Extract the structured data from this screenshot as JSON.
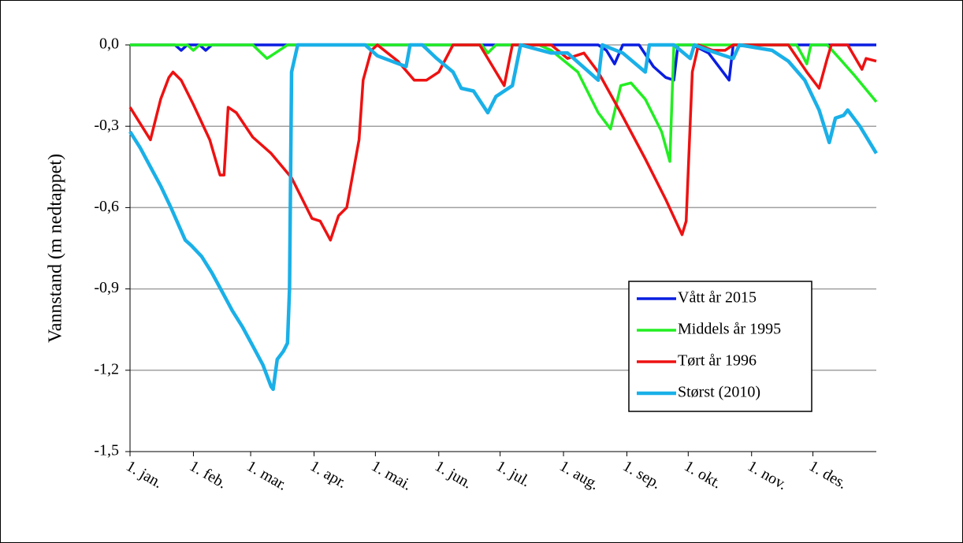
{
  "chart_data": {
    "type": "line",
    "y_label": "Vannstand  (m nedtappet)",
    "xlim": [
      0,
      365
    ],
    "xticks": [
      {
        "value": 0,
        "label": "1. jan."
      },
      {
        "value": 31,
        "label": "1. feb."
      },
      {
        "value": 59,
        "label": "1. mar."
      },
      {
        "value": 90,
        "label": "1. apr."
      },
      {
        "value": 120,
        "label": "1. mai."
      },
      {
        "value": 151,
        "label": "1. jun."
      },
      {
        "value": 181,
        "label": "1. jul."
      },
      {
        "value": 212,
        "label": "1. aug."
      },
      {
        "value": 243,
        "label": "1. sep."
      },
      {
        "value": 273,
        "label": "1. okt."
      },
      {
        "value": 304,
        "label": "1. nov."
      },
      {
        "value": 334,
        "label": "1. des."
      }
    ],
    "ylim": [
      -1.5,
      0
    ],
    "yticks": [
      {
        "value": 0,
        "label": "0,0"
      },
      {
        "value": -0.3,
        "label": "-0,3"
      },
      {
        "value": -0.6,
        "label": "-0,6"
      },
      {
        "value": -0.9,
        "label": "-0,9"
      },
      {
        "value": -1.2,
        "label": "-1,2"
      },
      {
        "value": -1.5,
        "label": "-1,5"
      }
    ],
    "grid": true,
    "legend": "lower right",
    "series": [
      {
        "name": "Vått år 2015",
        "color": "#0a1ee0",
        "x": [
          0,
          22,
          25,
          28,
          34,
          37,
          40,
          229,
          233,
          237,
          241,
          249,
          256,
          262,
          266,
          268,
          275,
          283,
          293,
          295,
          365
        ],
        "values": [
          0,
          0,
          -0.02,
          0,
          0,
          -0.02,
          0,
          0,
          -0.02,
          -0.07,
          0,
          0,
          -0.08,
          -0.12,
          -0.13,
          0,
          0,
          -0.03,
          -0.13,
          0,
          0
        ]
      },
      {
        "name": "Middels år 1995",
        "color": "#22ee22",
        "x": [
          0,
          28,
          31,
          34,
          60,
          67,
          73,
          77,
          172,
          175,
          179,
          200,
          206,
          219,
          229,
          235,
          240,
          245,
          252,
          260,
          264,
          266,
          326,
          329,
          331,
          333,
          341,
          347,
          354,
          365
        ],
        "values": [
          0,
          0,
          -0.02,
          0,
          0,
          -0.05,
          -0.02,
          0,
          0,
          -0.03,
          0,
          0,
          -0.02,
          -0.1,
          -0.25,
          -0.31,
          -0.15,
          -0.14,
          -0.2,
          -0.32,
          -0.43,
          0,
          0,
          -0.04,
          -0.07,
          0,
          0,
          -0.05,
          -0.11,
          -0.21
        ]
      },
      {
        "name": "Tørt år 1996",
        "color": "#ee1111",
        "x": [
          0,
          10,
          15,
          19,
          21,
          25,
          31,
          39,
          44,
          46,
          48,
          52,
          60,
          69,
          79,
          85,
          89,
          93,
          98,
          102,
          106,
          112,
          114,
          118,
          121,
          131,
          139,
          145,
          151,
          158,
          171,
          179,
          183,
          187,
          206,
          214,
          222,
          229,
          240,
          252,
          262,
          270,
          272,
          275,
          278,
          285,
          291,
          295,
          322,
          331,
          337,
          341,
          343,
          351,
          358,
          360,
          365
        ],
        "values": [
          -0.23,
          -0.35,
          -0.2,
          -0.12,
          -0.1,
          -0.13,
          -0.22,
          -0.35,
          -0.48,
          -0.48,
          -0.23,
          -0.25,
          -0.34,
          -0.4,
          -0.49,
          -0.58,
          -0.64,
          -0.65,
          -0.72,
          -0.63,
          -0.6,
          -0.35,
          -0.13,
          -0.02,
          0,
          -0.06,
          -0.13,
          -0.13,
          -0.1,
          0,
          0,
          -0.1,
          -0.15,
          0,
          0,
          -0.05,
          -0.03,
          -0.1,
          -0.25,
          -0.42,
          -0.57,
          -0.7,
          -0.65,
          -0.1,
          0,
          -0.02,
          -0.02,
          0,
          0,
          -0.1,
          -0.16,
          -0.05,
          0,
          0,
          -0.09,
          -0.05,
          -0.06
        ]
      },
      {
        "name": "Størst (2010)",
        "color": "#1ab0e8",
        "x": [
          0,
          5,
          10,
          15,
          20,
          27,
          30,
          35,
          40,
          45,
          50,
          55,
          60,
          65,
          69,
          70,
          72,
          75,
          77,
          78,
          79,
          82,
          115,
          121,
          135,
          137,
          143,
          150,
          158,
          162,
          168,
          175,
          179,
          187,
          191,
          206,
          214,
          229,
          231,
          241,
          252,
          254,
          266,
          274,
          276,
          283,
          295,
          298,
          314,
          322,
          330,
          337,
          342,
          345,
          349,
          351,
          357,
          365
        ],
        "values": [
          -0.32,
          -0.38,
          -0.45,
          -0.52,
          -0.6,
          -0.72,
          -0.74,
          -0.78,
          -0.84,
          -0.91,
          -0.98,
          -1.04,
          -1.11,
          -1.18,
          -1.26,
          -1.27,
          -1.16,
          -1.13,
          -1.1,
          -0.9,
          -0.1,
          0,
          0,
          -0.04,
          -0.08,
          0,
          0,
          -0.05,
          -0.1,
          -0.16,
          -0.17,
          -0.25,
          -0.19,
          -0.15,
          0,
          -0.03,
          -0.03,
          -0.13,
          0,
          -0.03,
          -0.1,
          0,
          0,
          -0.05,
          0,
          -0.02,
          -0.05,
          0,
          -0.02,
          -0.06,
          -0.13,
          -0.24,
          -0.36,
          -0.27,
          -0.26,
          -0.24,
          -0.3,
          -0.4
        ]
      }
    ]
  }
}
